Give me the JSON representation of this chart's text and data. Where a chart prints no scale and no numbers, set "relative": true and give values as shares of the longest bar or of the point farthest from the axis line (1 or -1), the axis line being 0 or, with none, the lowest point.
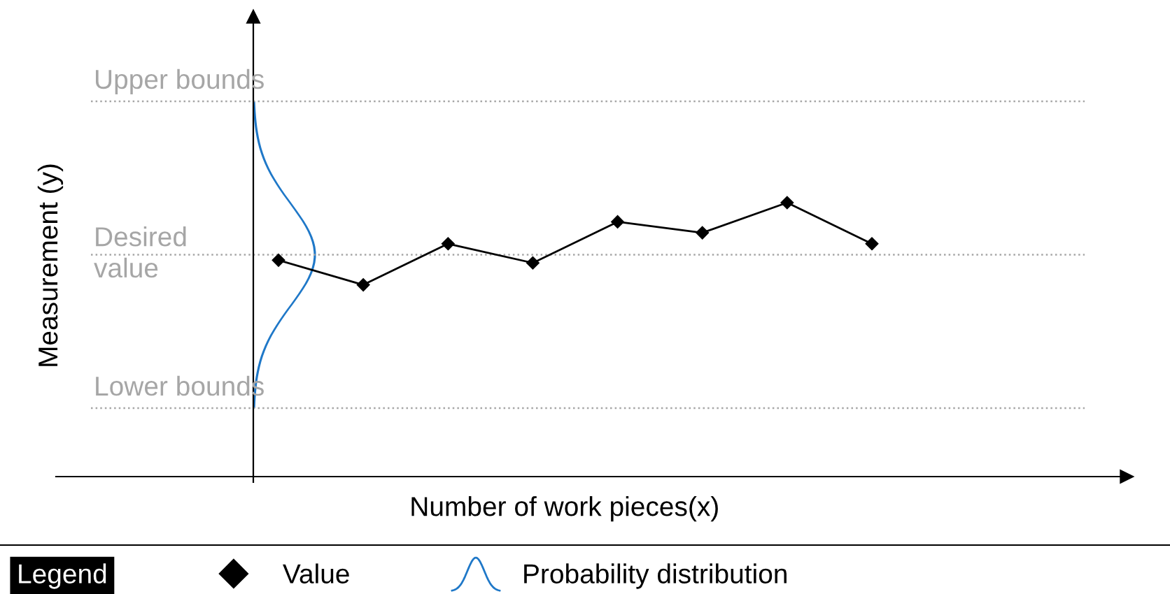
{
  "chart_data": {
    "type": "line",
    "relative": true,
    "xlabel": "Number of work pieces(x)",
    "legend_title": "Legend",
    "legend": "bottom",
    "marker": "diamond",
    "categories": [
      null,
      null,
      null,
      null,
      null,
      null,
      null,
      null
    ],
    "series": [
      {
        "name": "Value",
        "color": "#000000",
        "values": [
          0.79,
          0.7,
          0.85,
          0.78,
          0.93,
          0.89,
          1.0,
          0.85
        ]
      }
    ],
    "ref_lines": [
      {
        "axis": "y",
        "value": 1.37,
        "label": "Upper bounds",
        "color": "#a6a6a6",
        "line_style": "dotted"
      },
      {
        "axis": "y",
        "value": 0.81,
        "label": "Desired\nvalue",
        "color": "#a6a6a6",
        "line_style": "dotted"
      },
      {
        "axis": "y",
        "value": 0.25,
        "label": "Lower bounds",
        "color": "#a6a6a6",
        "line_style": "dotted"
      }
    ],
    "annotations": [
      "Probability distribution",
      "Measurement (y)"
    ]
  }
}
